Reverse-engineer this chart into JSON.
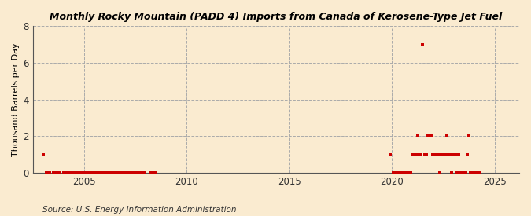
{
  "title": "Rocky Mountain (PADD 4) Imports from Canada of Kerosene-Type Jet Fuel",
  "title_prefix": "Monthly ",
  "ylabel": "Thousand Barrels per Day",
  "source": "Source: U.S. Energy Information Administration",
  "background_color": "#faebd0",
  "plot_bg_color": "#faebd0",
  "marker_color": "#cc0000",
  "ylim": [
    0,
    8
  ],
  "yticks": [
    0,
    2,
    4,
    6,
    8
  ],
  "xlim_start": 2002.5,
  "xlim_end": 2026.2,
  "xticks": [
    2005,
    2010,
    2015,
    2020,
    2025
  ],
  "data_points": [
    [
      2003.0,
      1.0
    ],
    [
      2003.17,
      0.0
    ],
    [
      2003.33,
      0.0
    ],
    [
      2003.5,
      0.0
    ],
    [
      2003.67,
      0.0
    ],
    [
      2003.83,
      0.0
    ],
    [
      2004.0,
      0.0
    ],
    [
      2004.083,
      0.0
    ],
    [
      2004.167,
      0.0
    ],
    [
      2004.25,
      0.0
    ],
    [
      2004.333,
      0.0
    ],
    [
      2004.417,
      0.0
    ],
    [
      2004.5,
      0.0
    ],
    [
      2004.583,
      0.0
    ],
    [
      2004.667,
      0.0
    ],
    [
      2004.75,
      0.0
    ],
    [
      2004.833,
      0.0
    ],
    [
      2004.917,
      0.0
    ],
    [
      2005.0,
      0.0
    ],
    [
      2005.083,
      0.0
    ],
    [
      2005.167,
      0.0
    ],
    [
      2005.25,
      0.0
    ],
    [
      2005.333,
      0.0
    ],
    [
      2005.417,
      0.0
    ],
    [
      2005.5,
      0.0
    ],
    [
      2005.583,
      0.0
    ],
    [
      2005.667,
      0.0
    ],
    [
      2005.75,
      0.0
    ],
    [
      2005.833,
      0.0
    ],
    [
      2005.917,
      0.0
    ],
    [
      2006.0,
      0.0
    ],
    [
      2006.083,
      0.0
    ],
    [
      2006.167,
      0.0
    ],
    [
      2006.25,
      0.0
    ],
    [
      2006.333,
      0.0
    ],
    [
      2006.417,
      0.0
    ],
    [
      2006.5,
      0.0
    ],
    [
      2006.583,
      0.0
    ],
    [
      2006.667,
      0.0
    ],
    [
      2006.75,
      0.0
    ],
    [
      2006.833,
      0.0
    ],
    [
      2006.917,
      0.0
    ],
    [
      2007.0,
      0.0
    ],
    [
      2007.083,
      0.0
    ],
    [
      2007.167,
      0.0
    ],
    [
      2007.25,
      0.0
    ],
    [
      2007.333,
      0.0
    ],
    [
      2007.417,
      0.0
    ],
    [
      2007.5,
      0.0
    ],
    [
      2007.583,
      0.0
    ],
    [
      2007.667,
      0.0
    ],
    [
      2007.75,
      0.0
    ],
    [
      2007.833,
      0.0
    ],
    [
      2007.917,
      0.0
    ],
    [
      2008.25,
      0.0
    ],
    [
      2008.333,
      0.0
    ],
    [
      2008.5,
      0.0
    ],
    [
      2019.917,
      1.0
    ],
    [
      2020.083,
      0.0
    ],
    [
      2020.167,
      0.0
    ],
    [
      2020.25,
      0.0
    ],
    [
      2020.333,
      0.0
    ],
    [
      2020.417,
      0.0
    ],
    [
      2020.5,
      0.0
    ],
    [
      2020.583,
      0.0
    ],
    [
      2020.667,
      0.0
    ],
    [
      2020.75,
      0.0
    ],
    [
      2020.833,
      0.0
    ],
    [
      2020.917,
      0.0
    ],
    [
      2021.0,
      1.0
    ],
    [
      2021.083,
      1.0
    ],
    [
      2021.167,
      1.0
    ],
    [
      2021.25,
      2.0
    ],
    [
      2021.333,
      1.0
    ],
    [
      2021.417,
      1.0
    ],
    [
      2021.5,
      7.0
    ],
    [
      2021.583,
      1.0
    ],
    [
      2021.667,
      1.0
    ],
    [
      2021.75,
      2.0
    ],
    [
      2021.833,
      2.0
    ],
    [
      2021.917,
      2.0
    ],
    [
      2022.0,
      1.0
    ],
    [
      2022.083,
      1.0
    ],
    [
      2022.167,
      1.0
    ],
    [
      2022.25,
      1.0
    ],
    [
      2022.333,
      0.0
    ],
    [
      2022.417,
      1.0
    ],
    [
      2022.5,
      1.0
    ],
    [
      2022.583,
      1.0
    ],
    [
      2022.667,
      2.0
    ],
    [
      2022.75,
      1.0
    ],
    [
      2022.833,
      1.0
    ],
    [
      2022.917,
      0.0
    ],
    [
      2023.0,
      1.0
    ],
    [
      2023.083,
      1.0
    ],
    [
      2023.167,
      0.0
    ],
    [
      2023.25,
      1.0
    ],
    [
      2023.333,
      0.0
    ],
    [
      2023.417,
      0.0
    ],
    [
      2023.5,
      0.0
    ],
    [
      2023.583,
      0.0
    ],
    [
      2023.667,
      1.0
    ],
    [
      2023.75,
      2.0
    ],
    [
      2023.833,
      0.0
    ],
    [
      2023.917,
      0.0
    ],
    [
      2024.0,
      0.0
    ],
    [
      2024.083,
      0.0
    ],
    [
      2024.167,
      0.0
    ],
    [
      2024.25,
      0.0
    ]
  ]
}
